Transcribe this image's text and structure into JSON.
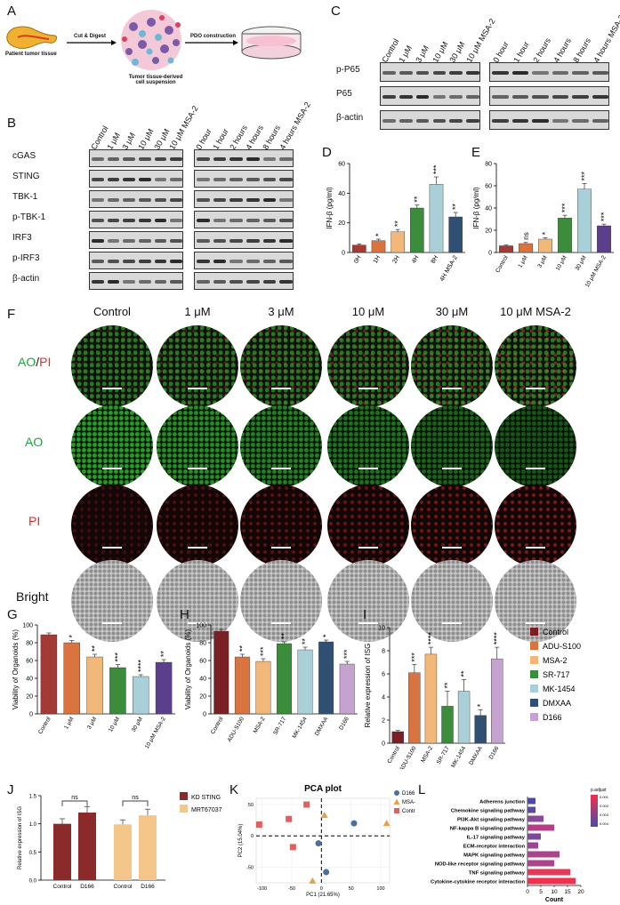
{
  "panelA": {
    "label": "A",
    "tissue": "Patient tumor tissue",
    "step1": "Cut & Digest",
    "suspension": "Tumor tissue-derived cell suspension",
    "step2": "PDO construction"
  },
  "panelB": {
    "label": "B",
    "doseLanes": [
      "Control",
      "1 μM",
      "3 μM",
      "10 μM",
      "30 μM",
      "10 μM MSA-2"
    ],
    "timeLanes": [
      "0 hour",
      "1 hour",
      "2 hours",
      "4 hours",
      "8 hours",
      "4 hours MSA-2"
    ],
    "rows": [
      "cGAS",
      "STING",
      "TBK-1",
      "p-TBK-1",
      "IRF3",
      "p-IRF3",
      "β-actin"
    ]
  },
  "panelC": {
    "label": "C",
    "doseLanes": [
      "Control",
      "1 μM",
      "3 μM",
      "10 μM",
      "30 μM",
      "10 μM MSA-2"
    ],
    "timeLanes": [
      "0 hour",
      "1 hour",
      "2 hours",
      "4 hours",
      "8 hours",
      "4 hours MSA-2"
    ],
    "rows": [
      "p-P65",
      "P65",
      "β-actin"
    ]
  },
  "panelF": {
    "label": "F",
    "cols": [
      "Control",
      "1 μM",
      "3 μM",
      "10 μM",
      "30 μM",
      "10 μM MSA-2"
    ],
    "rows": [
      "AO/PI",
      "AO",
      "PI",
      "Bright"
    ],
    "ao": "AO",
    "slash": "/",
    "pi": "PI"
  },
  "panelG": {
    "label": "G"
  },
  "panelH": {
    "label": "H"
  },
  "panelI": {
    "label": "I"
  },
  "panelJ": {
    "label": "J"
  },
  "panelK": {
    "label": "K"
  },
  "panelL": {
    "label": "L"
  },
  "chart_data": [
    {
      "id": "D",
      "type": "bar",
      "categories": [
        "0H",
        "1H",
        "2H",
        "4H",
        "8H",
        "4H MSA-2"
      ],
      "values": [
        5,
        8,
        14,
        30,
        46,
        24
      ],
      "errors": [
        0.8,
        1,
        1.5,
        2,
        5,
        3
      ],
      "sig": [
        "",
        "*",
        "**",
        "**",
        "***",
        "**"
      ],
      "ylabel": "IFN-β (pg/ml)",
      "ylim": [
        0,
        60
      ],
      "yticks": [
        0,
        20,
        40,
        60
      ],
      "colors": [
        "#a33a36",
        "#d9733f",
        "#f2b87a",
        "#3b8c3b",
        "#a9cfd9",
        "#2f4f73"
      ]
    },
    {
      "id": "E",
      "type": "bar",
      "categories": [
        "Control",
        "1 μM",
        "3 μM",
        "10 μM",
        "30 μM",
        "10 μM MSA-2"
      ],
      "values": [
        6,
        8,
        12,
        31,
        57,
        24
      ],
      "errors": [
        0.7,
        1,
        1.3,
        2.5,
        5,
        1.5
      ],
      "sig": [
        "",
        "ns",
        "*",
        "***",
        "***",
        "***"
      ],
      "ylabel": "IFN-β (pg/ml)",
      "ylim": [
        0,
        80
      ],
      "yticks": [
        0,
        20,
        40,
        60,
        80
      ],
      "colors": [
        "#a33a36",
        "#d9733f",
        "#f2b87a",
        "#3b8c3b",
        "#a9cfd9",
        "#5b3f8c"
      ]
    },
    {
      "id": "G",
      "type": "bar",
      "categories": [
        "Control",
        "1 μM",
        "3 μM",
        "10 μM",
        "30 μM",
        "10 μM MSA-2"
      ],
      "values": [
        89,
        80,
        64,
        52,
        42,
        58
      ],
      "errors": [
        2,
        2.5,
        3,
        3.5,
        2,
        3
      ],
      "sig": [
        "",
        "*",
        "**",
        "***",
        "****",
        "**"
      ],
      "ylabel": "Viability of Organoids (%)",
      "ylim": [
        0,
        100
      ],
      "yticks": [
        0,
        20,
        40,
        60,
        80,
        100
      ],
      "colors": [
        "#a33a36",
        "#d9733f",
        "#f2b87a",
        "#3b8c3b",
        "#a9cfd9",
        "#5b3f8c"
      ]
    },
    {
      "id": "H",
      "type": "bar",
      "categories": [
        "Control",
        "ADU-S100",
        "MSA-2",
        "SR-717",
        "MK-1454",
        "DMXAA",
        "D166"
      ],
      "values": [
        93,
        64,
        59,
        79,
        72,
        81,
        56
      ],
      "errors": [
        2,
        3,
        3,
        2,
        3,
        2,
        3
      ],
      "sig": [
        "",
        "**",
        "***",
        "**",
        "**",
        "*",
        "***"
      ],
      "ylabel": "Viability of Organoids (%)",
      "ylim": [
        0,
        100
      ],
      "yticks": [
        0,
        20,
        40,
        60,
        80,
        100
      ],
      "colors": [
        "#7a1f24",
        "#d9733f",
        "#f2b87a",
        "#3b8c3b",
        "#a9cfd9",
        "#2f4f73",
        "#c4a3cf"
      ]
    },
    {
      "id": "I",
      "type": "bar",
      "categories": [
        "Control",
        "ADU-S100",
        "MSA-2",
        "SR-717",
        "MK-1454",
        "DMXAA",
        "D166"
      ],
      "values": [
        1,
        6.1,
        7.7,
        3.2,
        4.5,
        2.4,
        7.3
      ],
      "errors": [
        0.1,
        0.7,
        0.6,
        1.3,
        1,
        0.5,
        1
      ],
      "sig": [
        "",
        "***",
        "****",
        "**",
        "**",
        "*",
        "****"
      ],
      "ylabel": "Relative expression of ISG",
      "ylim": [
        0,
        10
      ],
      "yticks": [
        0,
        2,
        4,
        6,
        8,
        10
      ],
      "colors": [
        "#7a1f24",
        "#d9733f",
        "#f2b87a",
        "#3b8c3b",
        "#a9cfd9",
        "#2f4f73",
        "#c4a3cf"
      ],
      "legend": [
        "Control",
        "ADU-S100",
        "MSA-2",
        "SR-717",
        "MK-1454",
        "DMXAA",
        "D166"
      ]
    },
    {
      "id": "J",
      "type": "bar",
      "categories": [
        "Control",
        "D166",
        "Control",
        "D166"
      ],
      "values": [
        1.0,
        1.2,
        0.99,
        1.15
      ],
      "errors": [
        0.09,
        0.1,
        0.08,
        0.11
      ],
      "sig": [
        "ns",
        "ns"
      ],
      "ylabel": "Relative expression of ISG",
      "ylim": [
        0,
        1.5
      ],
      "yticks": [
        0.0,
        0.5,
        1.0,
        1.5
      ],
      "colors": [
        "#8b2a2a",
        "#8b2a2a",
        "#f5c68a",
        "#f5c68a"
      ],
      "legend": [
        "KD STING",
        "MRT67037"
      ]
    },
    {
      "id": "K",
      "type": "scatter",
      "title": "PCA plot",
      "xlabel": "PC1 (21.65%)",
      "ylabel": "PC2 (15.04%)",
      "xticks": [
        -100,
        -50,
        0,
        50,
        100
      ],
      "yticks": [
        -50,
        0,
        50
      ],
      "xlim": [
        -110,
        115
      ],
      "ylim": [
        -75,
        60
      ],
      "series": [
        {
          "name": "D166",
          "shape": "circle",
          "color": "#4a6fa5",
          "points": [
            [
              -5,
              -12
            ],
            [
              8,
              -58
            ],
            [
              55,
              20
            ]
          ]
        },
        {
          "name": "MSA-2",
          "shape": "triangle",
          "color": "#e8a04a",
          "points": [
            [
              5,
              33
            ],
            [
              -15,
              -72
            ],
            [
              110,
              20
            ]
          ]
        },
        {
          "name": "Control",
          "shape": "square",
          "color": "#e06060",
          "points": [
            [
              -105,
              18
            ],
            [
              -55,
              27
            ],
            [
              -25,
              50
            ],
            [
              -48,
              -18
            ]
          ]
        }
      ]
    },
    {
      "id": "L",
      "type": "bar",
      "orientation": "horizontal",
      "categories": [
        "Adherens junction",
        "Chemokine signaling pathway",
        "PI3K-Akt signaling pathway",
        "NF-kappa B signaling pathway",
        "IL-17 signaling pathway",
        "ECM-receptor interaction",
        "MAPK signaling pathway",
        "NOD-like receptor signaling pathway",
        "TNF signaling pathway",
        "Cytokine-cytokine receptor interaction"
      ],
      "values": [
        3,
        3,
        6,
        10,
        5,
        4,
        12,
        10,
        16,
        18
      ],
      "xlabel": "Count",
      "xticks": [
        0,
        5,
        10,
        15,
        20
      ],
      "xlim": [
        0,
        20
      ],
      "legend_title": "p.adjust",
      "legend_ticks": [
        "0.001",
        "0.002",
        "0.003",
        "0.004"
      ],
      "colors": [
        "#4b4aa8",
        "#5a4aa6",
        "#8a4a9a",
        "#b43f87",
        "#7a4a9d",
        "#9b4592",
        "#a9448d",
        "#a9448d",
        "#e43a5a",
        "#f0304c"
      ]
    }
  ]
}
